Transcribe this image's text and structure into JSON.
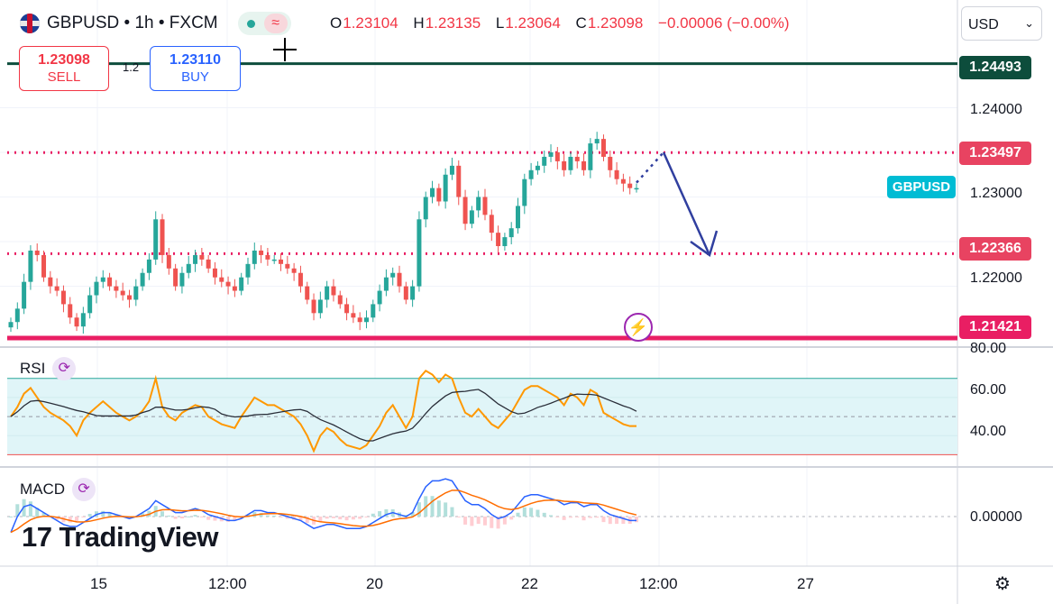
{
  "header": {
    "symbol_line": "GBPUSD • 1h • FXCM",
    "ohlc": [
      {
        "k": "O",
        "v": "1.23104"
      },
      {
        "k": "H",
        "v": "1.23135"
      },
      {
        "k": "L",
        "v": "1.23064"
      },
      {
        "k": "C",
        "v": "1.23098"
      }
    ],
    "change": "−0.00006 (−0.00%)",
    "pill_icon": "wave-icon"
  },
  "trade": {
    "sell_price": "1.23098",
    "sell_label": "SELL",
    "buy_price": "1.23110",
    "buy_label": "BUY",
    "spread": "1.2"
  },
  "currency": "USD",
  "symbol_tag": "GBPUSD",
  "price_labels": {
    "top_level": "1.24493",
    "resistance": "1.23497",
    "support": "1.22366",
    "bottom_level": "1.21421"
  },
  "price_axis": [
    "1.24000",
    "1.23000",
    "1.22000"
  ],
  "rsi": {
    "title": "RSI",
    "ticks": [
      "80.00",
      "60.00",
      "40.00"
    ]
  },
  "macd": {
    "title": "MACD",
    "ticks": [
      "0.00000"
    ]
  },
  "x_axis": [
    "15",
    "12:00",
    "20",
    "22",
    "12:00",
    "27"
  ],
  "logo": {
    "mark": "17",
    "text": "TradingView"
  },
  "colors": {
    "up": "#26a69a",
    "down": "#ef5350",
    "level_dark": "#0d4d3c",
    "level_pink": "#e91e63",
    "rsi_line": "#ff9800",
    "rsi_ma": "#2a2e39",
    "macd_line": "#2962ff",
    "signal_line": "#ff6d00",
    "arrow": "#303f9f"
  },
  "chart_data": {
    "type": "candlestick",
    "timeframe": "1h",
    "price_range": [
      1.2135,
      1.246
    ],
    "horizontal_levels": [
      1.24493,
      1.23497,
      1.22366,
      1.21421
    ],
    "projection": {
      "from": 1.235,
      "to": 1.2235
    },
    "close_path": [
      1.216,
      1.2175,
      1.2205,
      1.224,
      1.2235,
      1.221,
      1.22,
      1.2195,
      1.218,
      1.2165,
      1.2155,
      1.217,
      1.219,
      1.2205,
      1.221,
      1.22,
      1.2195,
      1.219,
      1.2185,
      1.22,
      1.2215,
      1.223,
      1.2275,
      1.2235,
      1.222,
      1.22,
      1.2215,
      1.2225,
      1.2235,
      1.223,
      1.222,
      1.221,
      1.2205,
      1.22,
      1.2195,
      1.221,
      1.2225,
      1.224,
      1.2235,
      1.223,
      1.223,
      1.2225,
      1.222,
      1.2215,
      1.22,
      1.2185,
      1.217,
      1.2185,
      1.22,
      1.219,
      1.218,
      1.217,
      1.2165,
      1.216,
      1.2165,
      1.218,
      1.2195,
      1.221,
      1.2215,
      1.22,
      1.2185,
      1.22,
      1.2275,
      1.23,
      1.231,
      1.2295,
      1.2325,
      1.2335,
      1.23,
      1.227,
      1.2285,
      1.23,
      1.228,
      1.226,
      1.2245,
      1.2255,
      1.2265,
      1.229,
      1.232,
      1.233,
      1.2335,
      1.2345,
      1.235,
      1.234,
      1.233,
      1.2345,
      1.234,
      1.233,
      1.236,
      1.2365,
      1.2345,
      1.233,
      1.232,
      1.2315,
      1.231,
      1.231
    ],
    "rsi_values": [
      50,
      55,
      62,
      65,
      60,
      55,
      52,
      50,
      48,
      45,
      40,
      48,
      52,
      55,
      58,
      55,
      52,
      50,
      48,
      50,
      53,
      58,
      70,
      55,
      50,
      48,
      52,
      54,
      56,
      55,
      50,
      48,
      46,
      45,
      44,
      50,
      55,
      60,
      58,
      56,
      56,
      54,
      52,
      50,
      46,
      40,
      32,
      40,
      44,
      42,
      38,
      35,
      34,
      33,
      35,
      40,
      45,
      52,
      56,
      50,
      44,
      50,
      70,
      74,
      72,
      68,
      72,
      70,
      60,
      52,
      50,
      54,
      50,
      46,
      44,
      48,
      52,
      58,
      64,
      66,
      66,
      64,
      62,
      60,
      56,
      62,
      60,
      56,
      64,
      62,
      52,
      50,
      48,
      46,
      45,
      45
    ],
    "macd_values": [
      -0.0008,
      0.0,
      0.0005,
      0.0006,
      0.0004,
      0.0002,
      0.0,
      -0.0002,
      -0.0004,
      -0.0005,
      -0.0005,
      -0.0003,
      -0.0001,
      0.0001,
      0.0002,
      0.0002,
      0.0001,
      0.0,
      -0.0001,
      0.0,
      0.0002,
      0.0004,
      0.0008,
      0.0006,
      0.0004,
      0.0002,
      0.0002,
      0.0003,
      0.0004,
      0.0003,
      0.0001,
      0.0,
      -0.0001,
      -0.0002,
      -0.0002,
      -0.0001,
      0.0001,
      0.0003,
      0.0003,
      0.0002,
      0.0002,
      0.0001,
      0.0,
      -0.0001,
      -0.0002,
      -0.0004,
      -0.0006,
      -0.0005,
      -0.0004,
      -0.0004,
      -0.0005,
      -0.0006,
      -0.0006,
      -0.0006,
      -0.0005,
      -0.0003,
      -0.0001,
      0.0001,
      0.0002,
      0.0001,
      0.0,
      0.0002,
      0.0009,
      0.0015,
      0.0018,
      0.0018,
      0.0019,
      0.0018,
      0.0013,
      0.0008,
      0.0006,
      0.0006,
      0.0004,
      0.0001,
      -0.0001,
      0.0,
      0.0002,
      0.0006,
      0.001,
      0.0011,
      0.0011,
      0.001,
      0.0009,
      0.0008,
      0.0006,
      0.0007,
      0.0007,
      0.0005,
      0.0006,
      0.0006,
      0.0003,
      0.0001,
      0.0,
      -0.0001,
      -0.0002,
      -0.0002
    ]
  }
}
